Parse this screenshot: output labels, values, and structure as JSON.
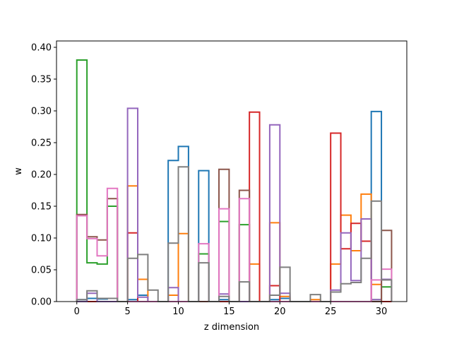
{
  "chart_data": {
    "type": "step",
    "xlabel": "z dimension",
    "ylabel": "w",
    "xlim": [
      -2.0,
      32.5
    ],
    "ylim": [
      0,
      0.41
    ],
    "x_ticks": [
      0,
      5,
      10,
      15,
      20,
      25,
      30
    ],
    "y_ticks": [
      0.0,
      0.05,
      0.1,
      0.15,
      0.2,
      0.25,
      0.3,
      0.35,
      0.4
    ],
    "y_tick_labels": [
      "0.00",
      "0.05",
      "0.10",
      "0.15",
      "0.20",
      "0.25",
      "0.30",
      "0.35",
      "0.40"
    ],
    "bin_edges_start": 0,
    "bin_width": 1,
    "series": [
      {
        "color": "#1f77b4",
        "values": [
          0.003,
          0.005,
          0.004,
          0.005,
          0,
          0.003,
          0.01,
          0,
          0,
          0.222,
          0.244,
          0,
          0.206,
          0,
          0.003,
          0,
          0,
          0,
          0,
          0.003,
          0.005,
          0,
          0,
          0,
          0,
          0,
          0,
          0,
          0,
          0.299,
          0
        ]
      },
      {
        "color": "#ff7f0e",
        "values": [
          0,
          0,
          0,
          0,
          0,
          0.182,
          0.035,
          0,
          0,
          0.01,
          0.107,
          0,
          0,
          0,
          0,
          0,
          0,
          0.059,
          0,
          0.124,
          0.008,
          0,
          0,
          0.003,
          0,
          0.059,
          0.136,
          0.08,
          0.169,
          0.027,
          0
        ]
      },
      {
        "color": "#2ca02c",
        "values": [
          0.38,
          0.061,
          0.059,
          0.15,
          0,
          0,
          0,
          0,
          0,
          0,
          0,
          0,
          0.075,
          0,
          0.126,
          0,
          0.121,
          0,
          0,
          0,
          0,
          0,
          0,
          0,
          0,
          0,
          0,
          0,
          0,
          0.003,
          0.023
        ]
      },
      {
        "color": "#d62728",
        "values": [
          0,
          0,
          0,
          0,
          0,
          0.108,
          0,
          0,
          0,
          0,
          0,
          0,
          0,
          0,
          0,
          0,
          0,
          0.298,
          0,
          0.025,
          0,
          0,
          0,
          0,
          0,
          0.265,
          0.083,
          0.123,
          0.095,
          0,
          0
        ]
      },
      {
        "color": "#9467bd",
        "values": [
          0,
          0.013,
          0,
          0,
          0,
          0.304,
          0.007,
          0,
          0,
          0.022,
          0,
          0,
          0,
          0,
          0.012,
          0,
          0,
          0,
          0,
          0.278,
          0.013,
          0,
          0,
          0,
          0,
          0.018,
          0.108,
          0.033,
          0.13,
          0.003,
          0.035
        ]
      },
      {
        "color": "#8c564b",
        "values": [
          0.137,
          0.102,
          0.097,
          0.162,
          0,
          0,
          0,
          0,
          0,
          0,
          0,
          0,
          0,
          0,
          0.208,
          0,
          0.175,
          0,
          0,
          0,
          0,
          0,
          0,
          0,
          0,
          0,
          0,
          0,
          0,
          0,
          0.112
        ]
      },
      {
        "color": "#e377c2",
        "values": [
          0.135,
          0.099,
          0.072,
          0.178,
          0,
          0,
          0,
          0,
          0,
          0,
          0,
          0,
          0.091,
          0,
          0.146,
          0,
          0.162,
          0,
          0,
          0,
          0,
          0,
          0,
          0,
          0,
          0,
          0,
          0,
          0,
          0.034,
          0.051
        ]
      },
      {
        "color": "#7f7f7f",
        "values": [
          0.003,
          0.017,
          0.005,
          0.005,
          0,
          0.068,
          0.074,
          0.018,
          0,
          0.092,
          0.212,
          0,
          0.061,
          0,
          0.008,
          0,
          0.031,
          0,
          0,
          0.01,
          0.054,
          0,
          0,
          0.011,
          0,
          0.015,
          0.028,
          0.03,
          0.068,
          0.158,
          0.034
        ]
      }
    ]
  }
}
